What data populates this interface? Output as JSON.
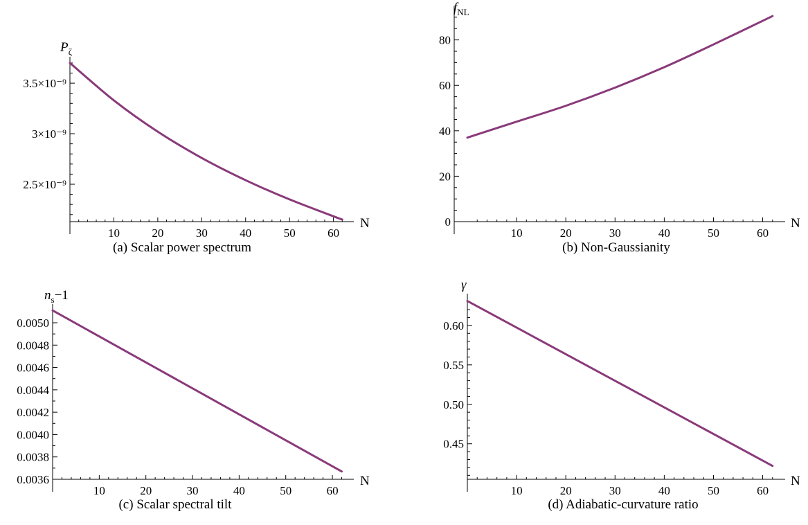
{
  "colors": {
    "curve": "#8a3a7a",
    "axis": "#000000"
  },
  "chart_data": [
    {
      "type": "line",
      "caption": "(a) Scalar power spectrum",
      "ylabel_main": "P",
      "ylabel_sub": "ζ",
      "xlabel": "N",
      "xlim": [
        0,
        64
      ],
      "ylim": [
        2.13e-09,
        3.72e-09
      ],
      "xticks": [
        10,
        20,
        30,
        40,
        50,
        60
      ],
      "xtick_labels": [
        "10",
        "20",
        "30",
        "40",
        "50",
        "60"
      ],
      "yticks": [
        2.5e-09,
        3e-09,
        3.5e-09
      ],
      "ytick_labels": [
        "2.5×10⁻⁹",
        "3×10⁻⁹",
        "3.5×10⁻⁹"
      ],
      "yminor": [
        2.2e-09,
        2.3e-09,
        2.4e-09,
        2.6e-09,
        2.7e-09,
        2.8e-09,
        2.9e-09,
        3.1e-09,
        3.2e-09,
        3.3e-09,
        3.4e-09,
        3.6e-09,
        3.7e-09
      ],
      "series": [
        {
          "x": [
            0,
            10,
            20,
            30,
            40,
            50,
            62
          ],
          "y": [
            3.7e-09,
            3.33e-09,
            3.02e-09,
            2.76e-09,
            2.54e-09,
            2.35e-09,
            2.15e-09
          ]
        }
      ]
    },
    {
      "type": "line",
      "caption": "(b) Non-Gaussianity",
      "ylabel_main": "f",
      "ylabel_sub": "NL",
      "xlabel": "N",
      "xlim": [
        0,
        64
      ],
      "ylim": [
        0,
        93
      ],
      "xticks": [
        10,
        20,
        30,
        40,
        50,
        60
      ],
      "xtick_labels": [
        "10",
        "20",
        "30",
        "40",
        "50",
        "60"
      ],
      "yticks": [
        0,
        20,
        40,
        60,
        80
      ],
      "ytick_labels": [
        "0",
        "20",
        "40",
        "60",
        "80"
      ],
      "yminor": [
        5,
        10,
        15,
        25,
        30,
        35,
        45,
        50,
        55,
        65,
        70,
        75,
        85,
        90
      ],
      "series": [
        {
          "x": [
            0,
            10,
            20,
            30,
            40,
            50,
            62
          ],
          "y": [
            37,
            44,
            51,
            59,
            68,
            78,
            90.5
          ]
        }
      ]
    },
    {
      "type": "line",
      "caption": "(c) Scalar spectral tilt",
      "ylabel_main": "n",
      "ylabel_sub": "s",
      "ylabel_suffix": "−1",
      "xlabel": "N",
      "xlim": [
        0,
        64
      ],
      "ylim": [
        0.0036,
        0.00513
      ],
      "xticks": [
        10,
        20,
        30,
        40,
        50,
        60
      ],
      "xtick_labels": [
        "10",
        "20",
        "30",
        "40",
        "50",
        "60"
      ],
      "yticks": [
        0.0036,
        0.0038,
        0.004,
        0.0042,
        0.0044,
        0.0046,
        0.0048,
        0.005
      ],
      "ytick_labels": [
        "0.0036",
        "0.0038",
        "0.0040",
        "0.0042",
        "0.0044",
        "0.0046",
        "0.0048",
        "0.0050"
      ],
      "yminor": [
        0.0037,
        0.0039,
        0.0041,
        0.0043,
        0.0045,
        0.0047,
        0.0049,
        0.0051
      ],
      "series": [
        {
          "x": [
            0,
            62
          ],
          "y": [
            0.00511,
            0.00367
          ]
        }
      ]
    },
    {
      "type": "line",
      "caption": "(d) Adiabatic-curvature ratio",
      "ylabel_main": "γ",
      "ylabel_sub": "",
      "xlabel": "N",
      "xlim": [
        0,
        64
      ],
      "ylim": [
        0.405,
        0.635
      ],
      "xticks": [
        10,
        20,
        30,
        40,
        50,
        60
      ],
      "xtick_labels": [
        "10",
        "20",
        "30",
        "40",
        "50",
        "60"
      ],
      "yticks": [
        0.45,
        0.5,
        0.55,
        0.6
      ],
      "ytick_labels": [
        "0.45",
        "0.50",
        "0.55",
        "0.60"
      ],
      "yminor": [
        0.41,
        0.42,
        0.43,
        0.44,
        0.46,
        0.47,
        0.48,
        0.49,
        0.51,
        0.52,
        0.53,
        0.54,
        0.56,
        0.57,
        0.58,
        0.59,
        0.61,
        0.62,
        0.63
      ],
      "series": [
        {
          "x": [
            0,
            62
          ],
          "y": [
            0.631,
            0.422
          ]
        }
      ]
    }
  ]
}
